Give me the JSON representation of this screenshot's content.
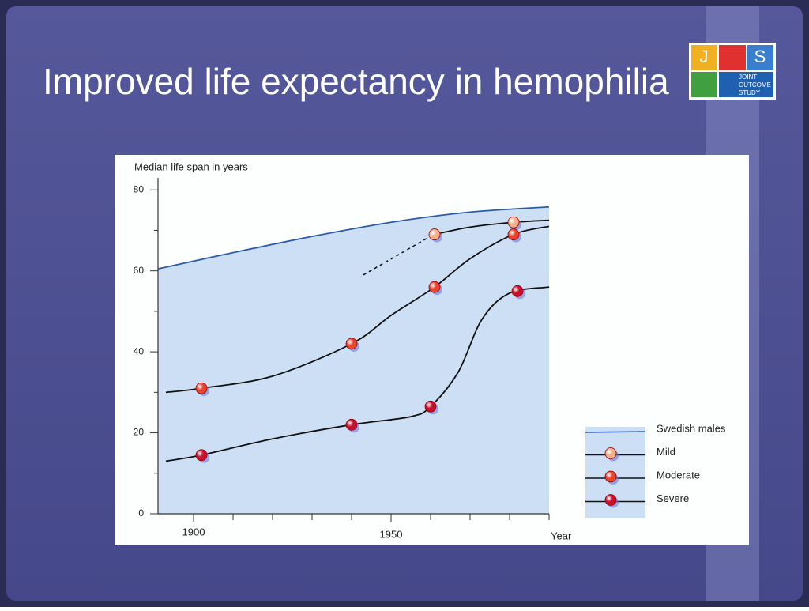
{
  "slide": {
    "title": "Improved life expectancy in hemophilia"
  },
  "logo": {
    "letters": [
      "J",
      "S"
    ],
    "lines": [
      "JOINT",
      "OUTCOME",
      "STUDY"
    ]
  },
  "chart_data": {
    "type": "line",
    "y_label": "Median life span in years",
    "x_label": "Year",
    "xlim": [
      1891,
      1990
    ],
    "xticks": [
      1900,
      1950
    ],
    "xminorticks": [
      1910,
      1920,
      1930,
      1940,
      1960,
      1970,
      1980,
      1990
    ],
    "ylim": [
      0,
      82
    ],
    "yticks": [
      0,
      20,
      40,
      60,
      80
    ],
    "yminorticks": [
      10,
      30,
      50,
      70
    ],
    "legend": "lower right",
    "series": [
      {
        "name": "Swedish males",
        "color": "#2a5caa",
        "x": [
          1891,
          1910,
          1930,
          1950,
          1970,
          1990
        ],
        "values": [
          60.5,
          64.5,
          68.5,
          72,
          74.5,
          75.8
        ]
      },
      {
        "name": "Mild",
        "color": "#f4b08a",
        "x": [
          1961,
          1970,
          1981,
          1990
        ],
        "values": [
          69,
          70.8,
          72,
          72.5
        ],
        "projection": {
          "x": [
            1943,
            1959
          ],
          "values": [
            59,
            68
          ]
        },
        "points": {
          "x": [
            1961,
            1981
          ],
          "values": [
            69,
            72
          ]
        }
      },
      {
        "name": "Moderate",
        "color": "#e8452e",
        "x": [
          1893,
          1902,
          1920,
          1940,
          1950,
          1961,
          1970,
          1981,
          1990
        ],
        "values": [
          30,
          31,
          34,
          42,
          49,
          56,
          63,
          69,
          71
        ],
        "points": {
          "x": [
            1902,
            1940,
            1961,
            1981
          ],
          "values": [
            31,
            42,
            56,
            69
          ]
        }
      },
      {
        "name": "Severe",
        "color": "#c8102e",
        "x": [
          1893,
          1902,
          1920,
          1940,
          1955,
          1960,
          1967,
          1973,
          1980,
          1990
        ],
        "values": [
          13,
          14.5,
          18.5,
          22,
          24,
          26.5,
          35,
          48,
          54.5,
          56
        ],
        "points": {
          "x": [
            1902,
            1940,
            1960,
            1982
          ],
          "values": [
            14.5,
            22,
            26.5,
            55
          ]
        }
      }
    ]
  }
}
